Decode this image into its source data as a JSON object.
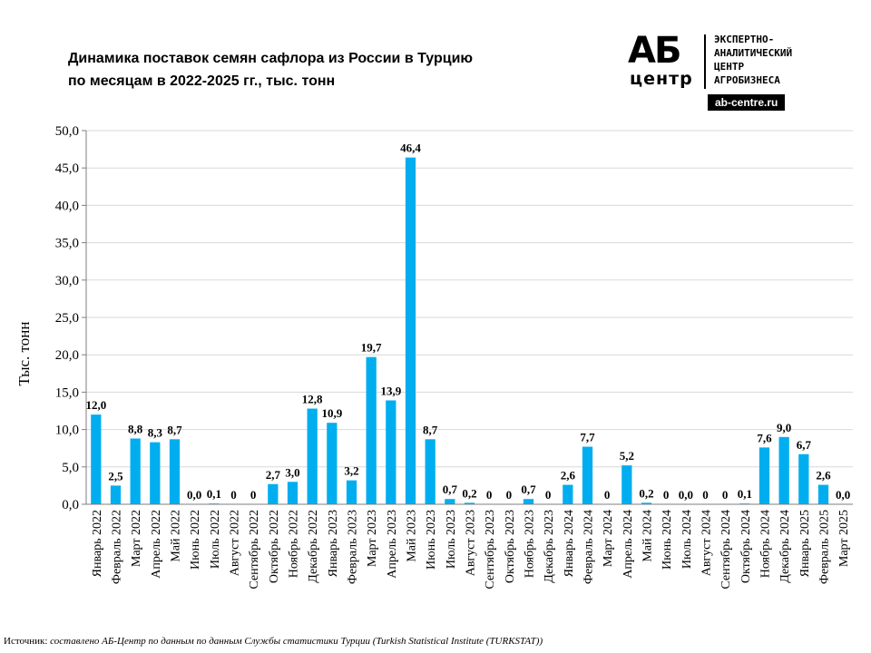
{
  "title": "Динамика поставок семян сафлора из России в Турцию\nпо месяцам  в 2022-2025 гг., тыс. тонн",
  "logo": {
    "mark": "АБ",
    "mark_sub": "центр",
    "org": "ЭКСПЕРТНО-\nАНАЛИТИЧЕСКИЙ\nЦЕНТР\nАГРОБИЗНЕСА",
    "site": "ab-centre.ru"
  },
  "source": {
    "prefix": "Источник: ",
    "text": "составлено АБ-Центр по данным по данным Службы статистики Турции (Turkish Statistical Institute (TURKSTAT))"
  },
  "colors": {
    "bar": "#00AEEF",
    "grid": "#D9D9D9",
    "axis": "#7F7F7F"
  },
  "chart_data": {
    "type": "bar",
    "ylabel": "Тыс. тонн",
    "ylim": [
      0,
      50
    ],
    "yticks": [
      "0,0",
      "5,0",
      "10,0",
      "15,0",
      "20,0",
      "25,0",
      "30,0",
      "35,0",
      "40,0",
      "45,0",
      "50,0"
    ],
    "grid": true,
    "categories": [
      "Январь 2022",
      "Февраль 2022",
      "Март 2022",
      "Апрель 2022",
      "Май 2022",
      "Июнь 2022",
      "Июль 2022",
      "Август 2022",
      "Сентябрь 2022",
      "Октябрь 2022",
      "Ноябрь 2022",
      "Декабрь 2022",
      "Январь 2023",
      "Февраль 2023",
      "Март 2023",
      "Апрель 2023",
      "Май 2023",
      "Июнь 2023",
      "Июль 2023",
      "Август 2023",
      "Сентябрь 2023",
      "Октябрь 2023",
      "Ноябрь 2023",
      "Декабрь 2023",
      "Январь 2024",
      "Февраль 2024",
      "Март 2024",
      "Апрель 2024",
      "Май 2024",
      "Июнь 2024",
      "Июль 2024",
      "Август 2024",
      "Сентябрь 2024",
      "Октябрь 2024",
      "Ноябрь 2024",
      "Декабрь 2024",
      "Январь 2025",
      "Февраль 2025",
      "Март 2025"
    ],
    "values": [
      12.0,
      2.5,
      8.8,
      8.3,
      8.7,
      0.0,
      0.1,
      0,
      0,
      2.7,
      3.0,
      12.8,
      10.9,
      3.2,
      19.7,
      13.9,
      46.4,
      8.7,
      0.7,
      0.2,
      0,
      0,
      0.7,
      0,
      2.6,
      7.7,
      0,
      5.2,
      0.2,
      0,
      0.0,
      0,
      0,
      0.1,
      7.6,
      9.0,
      6.7,
      2.6,
      0.0
    ],
    "labels": [
      "12,0",
      "2,5",
      "8,8",
      "8,3",
      "8,7",
      "0,0",
      "0,1",
      "0",
      "0",
      "2,7",
      "3,0",
      "12,8",
      "10,9",
      "3,2",
      "19,7",
      "13,9",
      "46,4",
      "8,7",
      "0,7",
      "0,2",
      "0",
      "0",
      "0,7",
      "0",
      "2,6",
      "7,7",
      "0",
      "5,2",
      "0,2",
      "0",
      "0,0",
      "0",
      "0",
      "0,1",
      "7,6",
      "9,0",
      "6,7",
      "2,6",
      "0,0"
    ]
  }
}
